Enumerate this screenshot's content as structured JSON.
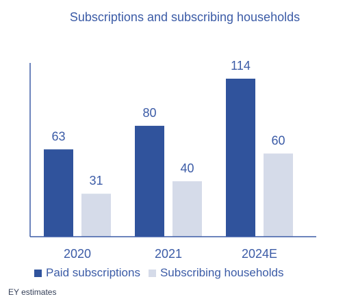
{
  "chart_data": {
    "type": "bar",
    "title": "Subscriptions and subscribing households",
    "categories": [
      "2020",
      "2021",
      "2024E"
    ],
    "series": [
      {
        "name": "Paid subscriptions",
        "values": [
          63,
          80,
          114
        ],
        "color": "#30539c"
      },
      {
        "name": "Subscribing households",
        "values": [
          31,
          40,
          60
        ],
        "color": "#d5dbe9"
      }
    ],
    "ylim": [
      0,
      130
    ],
    "grid": false,
    "legend_position": "bottom",
    "label_color": "#3b5ba6"
  },
  "source_note": "EY estimates"
}
